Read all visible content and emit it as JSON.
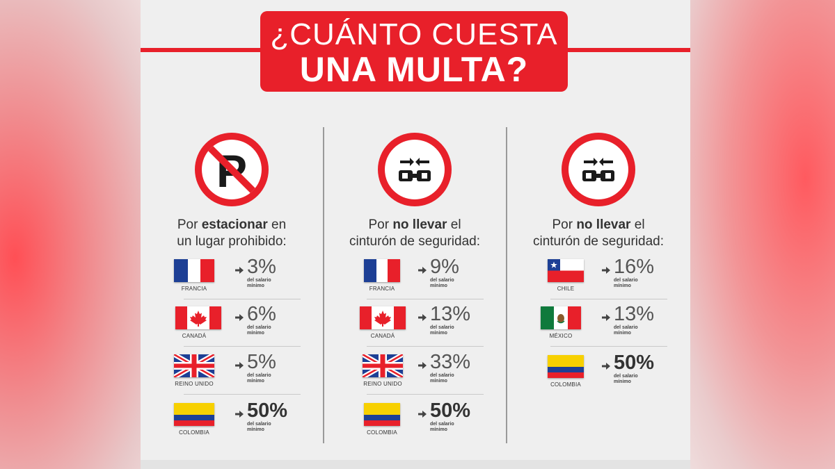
{
  "title": {
    "line1": "¿CUÁNTO CUESTA",
    "line2": "UNA MULTA?"
  },
  "colors": {
    "brand_red": "#e8202a",
    "panel_bg": "#efefef"
  },
  "columns": [
    {
      "icon": "no-parking-sign-icon",
      "caption_pre": "Por ",
      "caption_bold": "estacionar",
      "caption_post": " en",
      "caption_line2": "un lugar prohibido:",
      "rows": [
        {
          "country": "FRANCIA",
          "flag": "france-flag-icon",
          "percent": "3%",
          "note1": "del salario",
          "note2": "mínimo"
        },
        {
          "country": "CANADÁ",
          "flag": "canada-flag-icon",
          "percent": "6%",
          "note1": "del salario",
          "note2": "mínimo"
        },
        {
          "country": "REINO UNIDO",
          "flag": "uk-flag-icon",
          "percent": "5%",
          "note1": "del salario",
          "note2": "mínimo"
        },
        {
          "country": "COLOMBIA",
          "flag": "colombia-flag-icon",
          "percent": "50%",
          "note1": "del salario",
          "note2": "mínimo"
        }
      ]
    },
    {
      "icon": "seatbelt-sign-icon",
      "caption_pre": "Por ",
      "caption_bold": "no llevar",
      "caption_post": " el",
      "caption_line2": "cinturón de seguridad:",
      "rows": [
        {
          "country": "FRANCIA",
          "flag": "france-flag-icon",
          "percent": "9%",
          "note1": "del salario",
          "note2": "mínimo"
        },
        {
          "country": "CANADÁ",
          "flag": "canada-flag-icon",
          "percent": "13%",
          "note1": "del salario",
          "note2": "mínimo"
        },
        {
          "country": "REINO UNIDO",
          "flag": "uk-flag-icon",
          "percent": "33%",
          "note1": "del salario",
          "note2": "mínimo"
        },
        {
          "country": "COLOMBIA",
          "flag": "colombia-flag-icon",
          "percent": "50%",
          "note1": "del salario",
          "note2": "mínimo"
        }
      ]
    },
    {
      "icon": "seatbelt-sign-icon",
      "caption_pre": "Por ",
      "caption_bold": "no llevar",
      "caption_post": " el",
      "caption_line2": "cinturón de seguridad:",
      "rows": [
        {
          "country": "CHILE",
          "flag": "chile-flag-icon",
          "percent": "16%",
          "note1": "del salario",
          "note2": "mínimo"
        },
        {
          "country": "MÉXICO",
          "flag": "mexico-flag-icon",
          "percent": "13%",
          "note1": "del salario",
          "note2": "mínimo"
        },
        {
          "country": "COLOMBIA",
          "flag": "colombia-flag-icon",
          "percent": "50%",
          "note1": "del salario",
          "note2": "mínimo"
        }
      ]
    }
  ]
}
